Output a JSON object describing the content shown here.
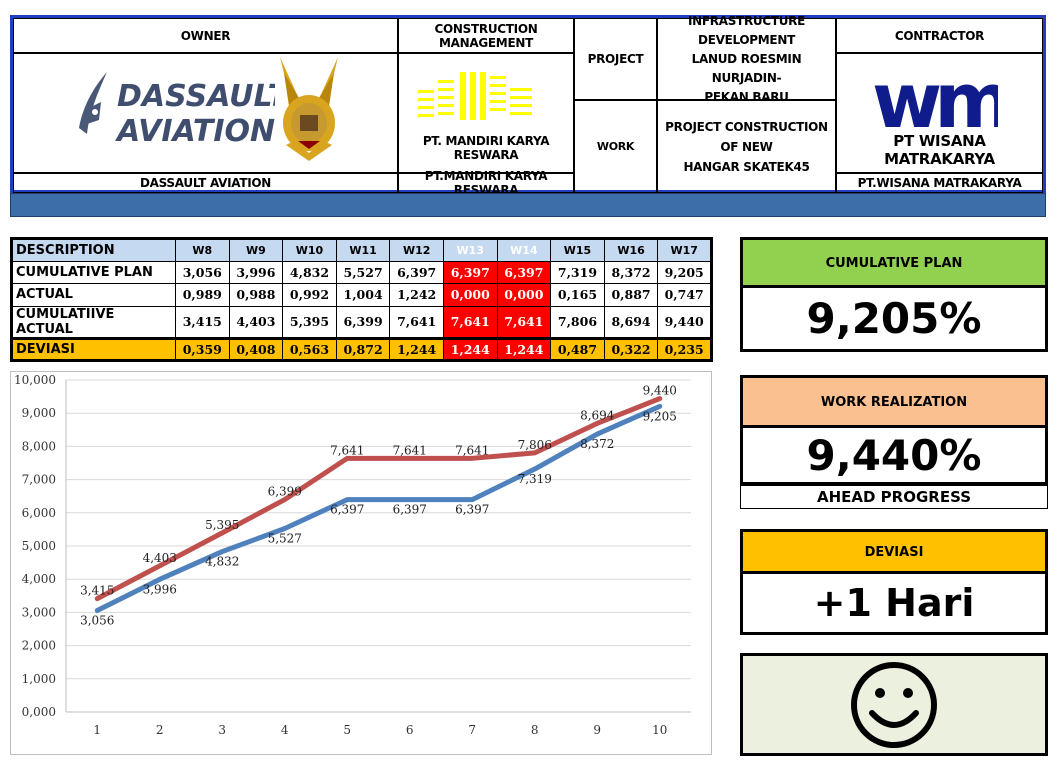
{
  "header": {
    "owner_title": "OWNER",
    "owner_name": "DASSAULT AVIATION",
    "cm_title": "CONSTRUCTION MANAGEMENT",
    "cm_logo_text": "PT. MANDIRI KARYA RESWARA",
    "cm_name": "PT.MANDIRI KARYA RESWARA",
    "project_label": "PROJECT",
    "project_line1": "INFRASTRUCTURE DEVELOPMENT",
    "project_line2": "LANUD ROESMIN NURJADIN-",
    "project_line3": "PEKAN BARU",
    "work_label": "WORK",
    "work_line1": "PROJECT CONSTRUCTION OF NEW",
    "work_line2": "HANGAR SKATEK45",
    "contractor_title": "CONTRACTOR",
    "contractor_logo_text": "PT WISANA MATRAKARYA",
    "contractor_name": "PT.WISANA MATRAKARYA",
    "logo_da_line1": "DASSAULT",
    "logo_da_line2": "AVIATION",
    "logo_wmk": "wmk"
  },
  "table": {
    "header_label": "DESCRIPTION",
    "weeks": [
      "W8",
      "W9",
      "W10",
      "W11",
      "W12",
      "W13",
      "W14",
      "W15",
      "W16",
      "W17"
    ],
    "rows": [
      {
        "label": "CUMULATIVE PLAN",
        "values": [
          "3,056",
          "3,996",
          "4,832",
          "5,527",
          "6,397",
          "6,397",
          "6,397",
          "7,319",
          "8,372",
          "9,205"
        ]
      },
      {
        "label": "ACTUAL",
        "values": [
          "0,989",
          "0,988",
          "0,992",
          "1,004",
          "1,242",
          "0,000",
          "0,000",
          "0,165",
          "0,887",
          "0,747"
        ]
      },
      {
        "label": "CUMULATIIVE ACTUAL",
        "values": [
          "3,415",
          "4,403",
          "5,395",
          "6,399",
          "7,641",
          "7,641",
          "7,641",
          "7,806",
          "8,694",
          "9,440"
        ]
      },
      {
        "label": "DEVIASI",
        "values": [
          "0,359",
          "0,408",
          "0,563",
          "0,872",
          "1,244",
          "1,244",
          "1,244",
          "0,487",
          "0,322",
          "0,235"
        ]
      }
    ]
  },
  "chart_data": {
    "type": "line",
    "x": [
      1,
      2,
      3,
      4,
      5,
      6,
      7,
      8,
      9,
      10
    ],
    "ylim": [
      0,
      10
    ],
    "y_ticks": [
      "0,000",
      "1,000",
      "2,000",
      "3,000",
      "4,000",
      "5,000",
      "6,000",
      "7,000",
      "8,000",
      "9,000",
      "10,000"
    ],
    "series": [
      {
        "values": [
          3.415,
          4.403,
          5.395,
          6.399,
          7.641,
          7.641,
          7.641,
          7.806,
          8.694,
          9.44
        ],
        "labels": [
          "3,415",
          "4,403",
          "5,395",
          "6,399",
          "7,641",
          "7,641",
          "7,641",
          "7,806",
          "8,694",
          "9,440"
        ],
        "color": "#c0504d"
      },
      {
        "values": [
          3.056,
          3.996,
          4.832,
          5.527,
          6.397,
          6.397,
          6.397,
          7.319,
          8.372,
          9.205
        ],
        "labels": [
          "3,056",
          "3,996",
          "4,832",
          "5,527",
          "6,397",
          "6,397",
          "6,397",
          "7,319",
          "8,372",
          "9,205"
        ],
        "color": "#4f81bd"
      }
    ],
    "grid": true,
    "legend": false
  },
  "panels": {
    "plan_title": "CUMULATIVE PLAN",
    "plan_value": "9,205%",
    "real_title": "WORK REALIZATION",
    "real_value": "9,440%",
    "real_sub": "AHEAD PROGRESS",
    "dev_title": "DEVIASI",
    "dev_value": "+1 Hari",
    "status_icon": "smiley-face-icon"
  },
  "colors": {
    "plan_head": "#92d050",
    "real_head": "#fac090",
    "dev_head": "#ffc000",
    "header_bar": "#3d6eaa",
    "red_cell": "#ff0000"
  }
}
